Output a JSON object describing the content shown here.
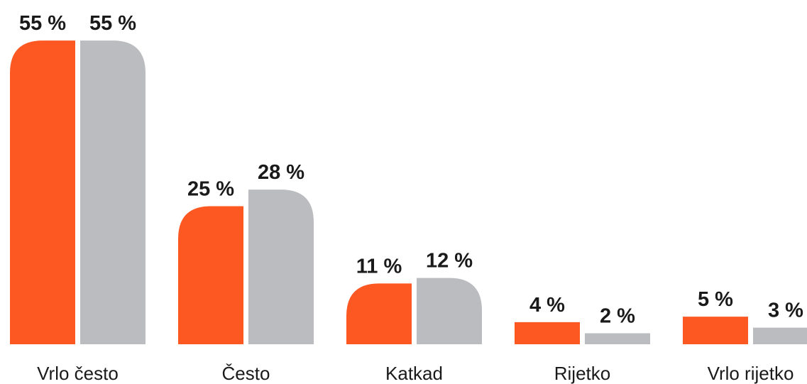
{
  "chart_data": {
    "type": "bar",
    "categories": [
      "Vrlo često",
      "Često",
      "Katkad",
      "Rijetko",
      "Vrlo rijetko"
    ],
    "series": [
      {
        "color": "#fd5722",
        "values": [
          55,
          25,
          11,
          4,
          5
        ],
        "value_labels": [
          "55 %",
          "25 %",
          "11 %",
          "4 %",
          "5 %"
        ]
      },
      {
        "color": "#bbbcc0",
        "values": [
          55,
          28,
          12,
          2,
          3
        ],
        "value_labels": [
          "55 %",
          "28 %",
          "12 %",
          "2 %",
          "3 %"
        ]
      }
    ]
  }
}
